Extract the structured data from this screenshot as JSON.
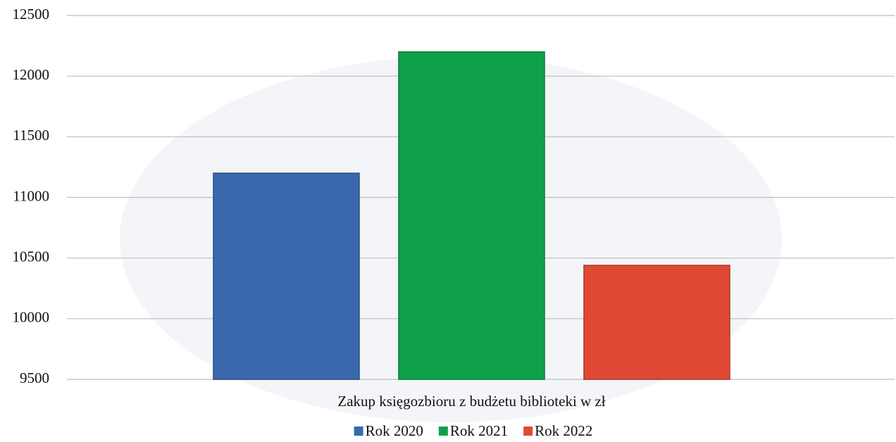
{
  "chart_data": {
    "type": "bar",
    "categories": [
      "Zakup księgozbioru z budżetu biblioteki w zł"
    ],
    "series": [
      {
        "name": "Rok 2020",
        "color": "#3a68ad",
        "values": [
          11200
        ]
      },
      {
        "name": "Rok 2021",
        "color": "#0fa14a",
        "values": [
          12200
        ]
      },
      {
        "name": "Rok 2022",
        "color": "#e04a35",
        "values": [
          10440
        ]
      }
    ],
    "ylim": [
      9500,
      12500
    ],
    "yticks": [
      9500,
      10000,
      10500,
      11000,
      11500,
      12000,
      12500
    ],
    "grid": true,
    "legend": "bottom"
  }
}
